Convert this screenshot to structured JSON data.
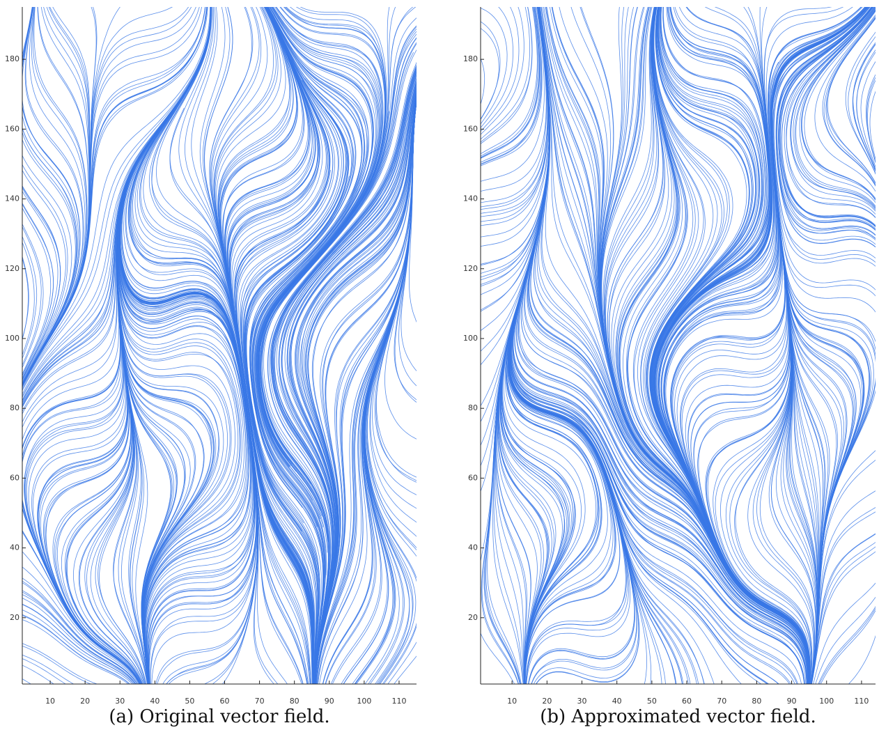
{
  "chart_data": [
    {
      "type": "streamline",
      "caption": "(a) Original vector field.",
      "xlim": [
        2,
        115
      ],
      "ylim": [
        1,
        195
      ],
      "xticks": [
        10,
        20,
        30,
        40,
        50,
        60,
        70,
        80,
        90,
        100,
        110
      ],
      "yticks": [
        20,
        40,
        60,
        80,
        100,
        120,
        140,
        160,
        180
      ]
    },
    {
      "type": "streamline",
      "caption": "(b) Approximated vector field.",
      "xlim": [
        1,
        114
      ],
      "ylim": [
        1,
        195
      ],
      "xticks": [
        10,
        20,
        30,
        40,
        50,
        60,
        70,
        80,
        90,
        100,
        110
      ],
      "yticks": [
        20,
        40,
        60,
        80,
        100,
        120,
        140,
        160,
        180
      ]
    }
  ]
}
